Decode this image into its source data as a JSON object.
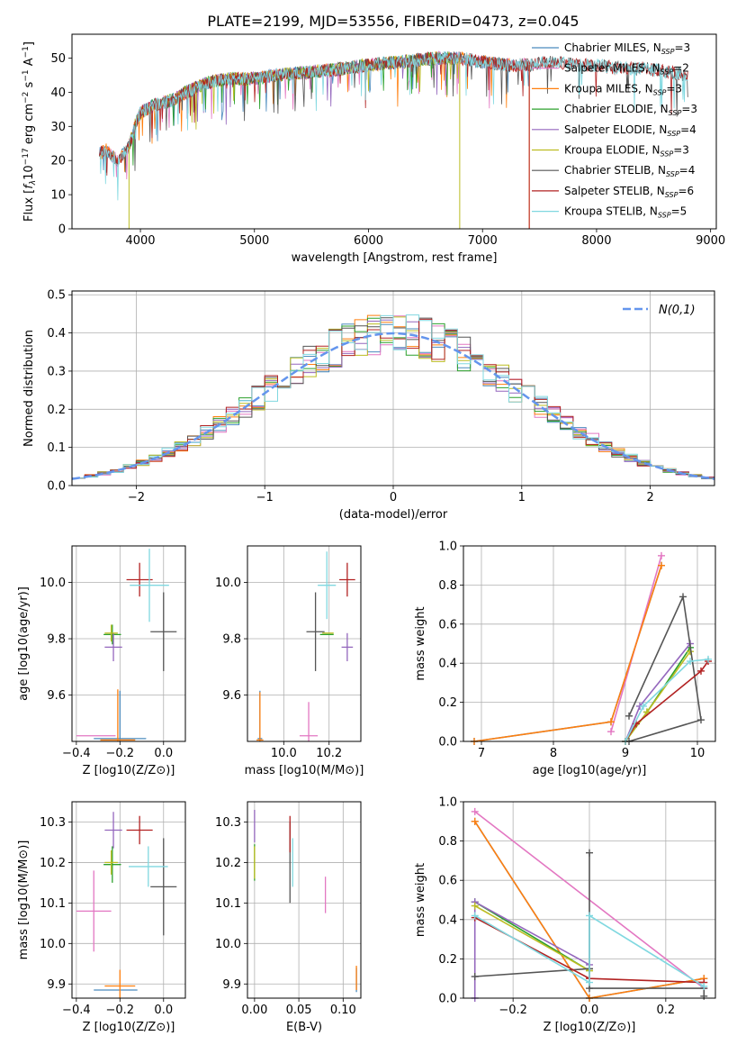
{
  "figure_title": "PLATE=2199, MJD=53556, FIBERID=0473, z=0.045",
  "colors": {
    "Chabrier MILES": "#4b8bbe",
    "Salpeter MILES": "#e377c2",
    "Kroupa MILES": "#ff7f0e",
    "Chabrier ELODIE": "#2ca02c",
    "Salpeter ELODIE": "#9467bd",
    "Kroupa ELODIE": "#bcbd22",
    "Chabrier STELIB": "#555555",
    "Salpeter STELIB": "#b22222",
    "Kroupa STELIB": "#80d8e0",
    "normal": "#6495ed"
  },
  "chart_data": [
    {
      "id": "spectrum",
      "type": "line",
      "xlabel": "wavelength [Angstrom, rest frame]",
      "ylabel": "Flux [f_λ 10^-17 erg cm^-2 s^-1 A^-1]",
      "xlim": [
        3400,
        9050
      ],
      "ylim": [
        0,
        57
      ],
      "xticks": [
        4000,
        5000,
        6000,
        7000,
        8000,
        9000
      ],
      "yticks": [
        0,
        10,
        20,
        30,
        40,
        50
      ],
      "grid": false,
      "legend_position": "upper-right",
      "legend": [
        {
          "name": "Chabrier MILES",
          "nssp": "3"
        },
        {
          "name": "Salpeter MILES",
          "nssp": "2"
        },
        {
          "name": "Kroupa MILES",
          "nssp": "3"
        },
        {
          "name": "Chabrier ELODIE",
          "nssp": "3"
        },
        {
          "name": "Salpeter ELODIE",
          "nssp": "4"
        },
        {
          "name": "Kroupa ELODIE",
          "nssp": "3"
        },
        {
          "name": "Chabrier STELIB",
          "nssp": "4"
        },
        {
          "name": "Salpeter STELIB",
          "nssp": "6"
        },
        {
          "name": "Kroupa STELIB",
          "nssp": "5"
        }
      ],
      "continuum": {
        "x": [
          3640,
          3700,
          3800,
          3900,
          3950,
          4000,
          4100,
          4200,
          4300,
          4400,
          4600,
          4800,
          5000,
          5200,
          5500,
          5800,
          6000,
          6300,
          6600,
          6800,
          7000,
          7200,
          7400,
          7600,
          7800,
          8000,
          8200,
          8400,
          8600,
          8800
        ],
        "y": [
          22,
          23,
          20,
          24,
          30,
          34,
          36,
          37,
          38,
          40,
          43,
          44,
          44,
          45,
          46,
          47,
          48,
          49,
          50,
          50,
          49,
          48,
          48,
          49,
          48,
          48,
          47,
          47,
          46,
          45
        ]
      },
      "series_ranges": [
        {
          "name": "Chabrier MILES",
          "x": [
            3640,
            7410
          ]
        },
        {
          "name": "Salpeter MILES",
          "x": [
            3640,
            7410
          ]
        },
        {
          "name": "Kroupa MILES",
          "x": [
            3640,
            7410
          ]
        },
        {
          "name": "Chabrier ELODIE",
          "x": [
            3900,
            6800
          ]
        },
        {
          "name": "Salpeter ELODIE",
          "x": [
            3900,
            6800
          ]
        },
        {
          "name": "Kroupa ELODIE",
          "x": [
            3900,
            6800
          ]
        },
        {
          "name": "Chabrier STELIB",
          "x": [
            3640,
            8800
          ]
        },
        {
          "name": "Salpeter STELIB",
          "x": [
            3640,
            8800
          ]
        },
        {
          "name": "Kroupa STELIB",
          "x": [
            3640,
            8800
          ]
        }
      ]
    },
    {
      "id": "residuals",
      "type": "line",
      "xlabel": "(data-model)/error",
      "ylabel": "Normed distribution",
      "xlim": [
        -2.5,
        2.5
      ],
      "ylim": [
        0,
        0.51
      ],
      "xticks": [
        -2,
        -1,
        0,
        1,
        2
      ],
      "yticks": [
        0.0,
        0.1,
        0.2,
        0.3,
        0.4,
        0.5
      ],
      "grid": true,
      "reference_curve": {
        "name": "N(0,1)",
        "mean": 0,
        "sigma": 1
      },
      "legend_position": "upper-right",
      "hist_bins": {
        "start": -2.5,
        "width": 0.1,
        "count": 50
      }
    },
    {
      "id": "age_vs_Z",
      "type": "scatter",
      "xlabel": "Z [log10(Z/Z⊙)]",
      "ylabel": "age [log10(age/yr)]",
      "xlim": [
        -0.42,
        0.1
      ],
      "ylim": [
        9.435,
        10.13
      ],
      "xticks": [
        -0.4,
        -0.2,
        0.0
      ],
      "yticks": [
        9.6,
        9.8,
        10.0
      ],
      "grid": true,
      "points": [
        {
          "series": "Chabrier MILES",
          "x": -0.2,
          "y": 9.445,
          "xerr": 0.12,
          "yerr": 0.17
        },
        {
          "series": "Salpeter MILES",
          "x": -0.31,
          "y": 9.455,
          "xerr": 0.09,
          "yerr": 0.0
        },
        {
          "series": "Kroupa MILES",
          "x": -0.21,
          "y": 9.44,
          "xerr": 0.08,
          "yerr": 0.18
        },
        {
          "series": "Chabrier ELODIE",
          "x": -0.235,
          "y": 9.815,
          "xerr": 0.04,
          "yerr": 0.035
        },
        {
          "series": "Salpeter ELODIE",
          "x": -0.23,
          "y": 9.77,
          "xerr": 0.04,
          "yerr": 0.05
        },
        {
          "series": "Kroupa ELODIE",
          "x": -0.24,
          "y": 9.82,
          "xerr": 0.03,
          "yerr": 0.03
        },
        {
          "series": "Chabrier STELIB",
          "x": 0.0,
          "y": 9.825,
          "xerr": 0.06,
          "yerr": 0.14
        },
        {
          "series": "Salpeter STELIB",
          "x": -0.11,
          "y": 10.01,
          "xerr": 0.06,
          "yerr": 0.06
        },
        {
          "series": "Kroupa STELIB",
          "x": -0.065,
          "y": 9.99,
          "xerr": 0.09,
          "yerr": 0.13
        }
      ]
    },
    {
      "id": "age_vs_mass",
      "type": "scatter",
      "xlabel": "mass [log10(M/M⊙)]",
      "ylabel": "",
      "xlim": [
        9.84,
        10.34
      ],
      "ylim": [
        9.435,
        10.13
      ],
      "xticks": [
        10.0,
        10.2
      ],
      "yticks": [
        9.6,
        9.8,
        10.0
      ],
      "grid": true,
      "points": [
        {
          "series": "Chabrier MILES",
          "x": 9.895,
          "y": 9.445,
          "xerr": 0.01,
          "yerr": 0.17
        },
        {
          "series": "Salpeter MILES",
          "x": 10.11,
          "y": 9.455,
          "xerr": 0.04,
          "yerr": 0.12
        },
        {
          "series": "Kroupa MILES",
          "x": 9.895,
          "y": 9.44,
          "xerr": 0.015,
          "yerr": 0.17
        },
        {
          "series": "Chabrier ELODIE",
          "x": 10.19,
          "y": 9.815,
          "xerr": 0.03,
          "yerr": 0.0
        },
        {
          "series": "Salpeter ELODIE",
          "x": 10.28,
          "y": 9.77,
          "xerr": 0.025,
          "yerr": 0.05
        },
        {
          "series": "Kroupa ELODIE",
          "x": 10.195,
          "y": 9.82,
          "xerr": 0.025,
          "yerr": 0.0
        },
        {
          "series": "Chabrier STELIB",
          "x": 10.14,
          "y": 9.825,
          "xerr": 0.04,
          "yerr": 0.14
        },
        {
          "series": "Salpeter STELIB",
          "x": 10.28,
          "y": 10.01,
          "xerr": 0.035,
          "yerr": 0.06
        },
        {
          "series": "Kroupa STELIB",
          "x": 10.19,
          "y": 9.99,
          "xerr": 0.04,
          "yerr": 0.12
        }
      ]
    },
    {
      "id": "mass_weight_vs_age",
      "type": "line",
      "xlabel": "age [log10(age/yr)]",
      "ylabel": "mass weight",
      "xlim": [
        6.75,
        10.25
      ],
      "ylim": [
        0,
        1.0
      ],
      "xticks": [
        7,
        8,
        9,
        10
      ],
      "yticks": [
        0.0,
        0.2,
        0.4,
        0.6,
        0.8,
        1.0
      ],
      "grid": true,
      "series": [
        {
          "name": "Chabrier MILES",
          "x": [
            6.9,
            8.8,
            9.5
          ],
          "y": [
            0.0,
            0.1,
            0.9
          ]
        },
        {
          "name": "Salpeter MILES",
          "x": [
            8.8,
            9.5
          ],
          "y": [
            0.05,
            0.95
          ]
        },
        {
          "name": "Kroupa MILES",
          "x": [
            6.9,
            8.8,
            9.5
          ],
          "y": [
            0.0,
            0.1,
            0.9
          ]
        },
        {
          "name": "Chabrier ELODIE",
          "x": [
            9.0,
            9.3,
            9.9
          ],
          "y": [
            0.0,
            0.15,
            0.48
          ]
        },
        {
          "name": "Salpeter ELODIE",
          "x": [
            9.0,
            9.2,
            9.9
          ],
          "y": [
            0.0,
            0.18,
            0.5
          ]
        },
        {
          "name": "Kroupa ELODIE",
          "x": [
            9.0,
            9.3,
            9.9
          ],
          "y": [
            0.0,
            0.15,
            0.46
          ]
        },
        {
          "name": "Chabrier STELIB",
          "x": [
            9.05,
            9.8,
            10.05,
            9.05
          ],
          "y": [
            0.13,
            0.74,
            0.11,
            0.0
          ]
        },
        {
          "name": "Salpeter STELIB",
          "x": [
            9.0,
            9.15,
            10.05,
            10.15
          ],
          "y": [
            0.0,
            0.09,
            0.36,
            0.41
          ]
        },
        {
          "name": "Kroupa STELIB",
          "x": [
            9.0,
            9.25,
            9.9,
            10.15
          ],
          "y": [
            0.0,
            0.18,
            0.41,
            0.42
          ]
        }
      ]
    },
    {
      "id": "mass_vs_Z",
      "type": "scatter",
      "xlabel": "Z [log10(Z/Z⊙)]",
      "ylabel": "mass [log10(M/M⊙)]",
      "xlim": [
        -0.42,
        0.1
      ],
      "ylim": [
        9.865,
        10.35
      ],
      "xticks": [
        -0.4,
        -0.2,
        0.0
      ],
      "yticks": [
        9.9,
        10.0,
        10.1,
        10.2,
        10.3
      ],
      "grid": true,
      "points": [
        {
          "series": "Chabrier MILES",
          "x": -0.22,
          "y": 9.885,
          "xerr": 0.1,
          "yerr": 0.0
        },
        {
          "series": "Salpeter MILES",
          "x": -0.32,
          "y": 10.08,
          "xerr": 0.08,
          "yerr": 0.1
        },
        {
          "series": "Kroupa MILES",
          "x": -0.2,
          "y": 9.895,
          "xerr": 0.07,
          "yerr": 0.04
        },
        {
          "series": "Chabrier ELODIE",
          "x": -0.235,
          "y": 10.195,
          "xerr": 0.04,
          "yerr": 0.045
        },
        {
          "series": "Salpeter ELODIE",
          "x": -0.23,
          "y": 10.28,
          "xerr": 0.04,
          "yerr": 0.045
        },
        {
          "series": "Kroupa ELODIE",
          "x": -0.24,
          "y": 10.2,
          "xerr": 0.03,
          "yerr": 0.03
        },
        {
          "series": "Chabrier STELIB",
          "x": 0.0,
          "y": 10.14,
          "xerr": 0.06,
          "yerr": 0.12
        },
        {
          "series": "Salpeter STELIB",
          "x": -0.11,
          "y": 10.28,
          "xerr": 0.06,
          "yerr": 0.035
        },
        {
          "series": "Kroupa STELIB",
          "x": -0.07,
          "y": 10.19,
          "xerr": 0.09,
          "yerr": 0.05
        }
      ]
    },
    {
      "id": "mass_vs_EBV",
      "type": "scatter",
      "xlabel": "E(B-V)",
      "ylabel": "",
      "xlim": [
        -0.008,
        0.12
      ],
      "ylim": [
        9.865,
        10.35
      ],
      "xticks": [
        0.0,
        0.05,
        0.1
      ],
      "yticks": [
        9.9,
        10.0,
        10.1,
        10.2,
        10.3
      ],
      "grid": true,
      "points": [
        {
          "series": "Chabrier MILES",
          "x": 0.115,
          "y": 9.91,
          "xerr": 0.0,
          "yerr": 0.03
        },
        {
          "series": "Salpeter MILES",
          "x": 0.08,
          "y": 10.12,
          "xerr": 0.0,
          "yerr": 0.045
        },
        {
          "series": "Kroupa MILES",
          "x": 0.115,
          "y": 9.915,
          "xerr": 0.0,
          "yerr": 0.03
        },
        {
          "series": "Chabrier ELODIE",
          "x": 0.0,
          "y": 10.2,
          "xerr": 0.0,
          "yerr": 0.045
        },
        {
          "series": "Salpeter ELODIE",
          "x": 0.0,
          "y": 10.29,
          "xerr": 0.0,
          "yerr": 0.04
        },
        {
          "series": "Kroupa ELODIE",
          "x": 0.0,
          "y": 10.2,
          "xerr": 0.0,
          "yerr": 0.04
        },
        {
          "series": "Chabrier STELIB",
          "x": 0.04,
          "y": 10.2,
          "xerr": 0.0,
          "yerr": 0.1
        },
        {
          "series": "Salpeter STELIB",
          "x": 0.04,
          "y": 10.27,
          "xerr": 0.0,
          "yerr": 0.045
        },
        {
          "series": "Kroupa STELIB",
          "x": 0.043,
          "y": 10.2,
          "xerr": 0.0,
          "yerr": 0.06
        }
      ]
    },
    {
      "id": "mass_weight_vs_Z",
      "type": "line",
      "xlabel": "Z [log10(Z/Z⊙)]",
      "ylabel": "mass weight",
      "xlim": [
        -0.33,
        0.33
      ],
      "ylim": [
        0,
        1.0
      ],
      "xticks": [
        -0.2,
        0.0,
        0.2
      ],
      "yticks": [
        0.0,
        0.2,
        0.4,
        0.6,
        0.8,
        1.0
      ],
      "grid": true,
      "series": [
        {
          "name": "Chabrier MILES",
          "x": [
            -0.3,
            0.0,
            0.3
          ],
          "y": [
            0.9,
            0.0,
            0.1
          ]
        },
        {
          "name": "Salpeter MILES",
          "x": [
            -0.3,
            0.3
          ],
          "y": [
            0.95,
            0.05
          ]
        },
        {
          "name": "Kroupa MILES",
          "x": [
            -0.3,
            0.0,
            0.3
          ],
          "y": [
            0.9,
            0.0,
            0.1
          ]
        },
        {
          "name": "Chabrier ELODIE",
          "x": [
            -0.3,
            0.0
          ],
          "y": [
            0.49,
            0.14
          ]
        },
        {
          "name": "Salpeter ELODIE",
          "x": [
            -0.3,
            -0.3,
            0.0
          ],
          "y": [
            0.0,
            0.49,
            0.17
          ]
        },
        {
          "name": "Kroupa ELODIE",
          "x": [
            -0.3,
            0.0
          ],
          "y": [
            0.47,
            0.14
          ]
        },
        {
          "name": "Chabrier STELIB",
          "x": [
            -0.3,
            0.0,
            0.0,
            0.0,
            0.3,
            0.3
          ],
          "y": [
            0.11,
            0.15,
            0.74,
            0.05,
            0.05,
            0.01
          ]
        },
        {
          "name": "Salpeter STELIB",
          "x": [
            -0.3,
            0.0,
            0.3
          ],
          "y": [
            0.41,
            0.1,
            0.08
          ]
        },
        {
          "name": "Kroupa STELIB",
          "x": [
            -0.3,
            0.0,
            0.0,
            0.3
          ],
          "y": [
            0.42,
            0.08,
            0.42,
            0.06
          ]
        }
      ]
    }
  ]
}
